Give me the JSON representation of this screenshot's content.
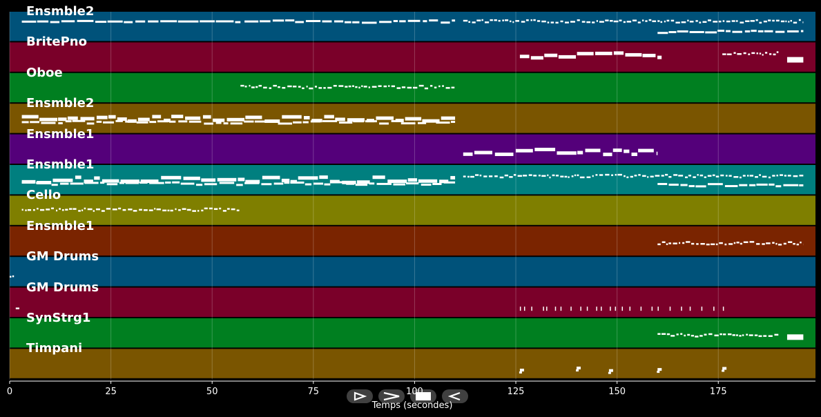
{
  "chart_data": {
    "type": "piano-roll",
    "xlabel": "Temps (secondes)",
    "xlim": [
      0,
      199
    ],
    "xticks": [
      0,
      25,
      50,
      75,
      100,
      125,
      150,
      175
    ],
    "grid": true,
    "tracks": [
      {
        "name": "Ensmble2",
        "color": "#00527a",
        "segments": [
          [
            3,
            57,
            0.3,
            "solid"
          ],
          [
            58,
            110,
            0.3,
            "dash"
          ],
          [
            112,
            160,
            0.3,
            "dots"
          ],
          [
            160,
            196,
            0.3,
            "dots"
          ],
          [
            160,
            196,
            0.65,
            "dash"
          ]
        ]
      },
      {
        "name": "BritePno",
        "color": "#7a0029",
        "segments": [
          [
            126,
            161,
            0.4,
            "thick"
          ],
          [
            176,
            190,
            0.35,
            "dots"
          ],
          [
            192,
            196,
            0.5,
            "block"
          ]
        ]
      },
      {
        "name": "Oboe",
        "color": "#007f20",
        "segments": [
          [
            57,
            110,
            0.45,
            "dots"
          ]
        ]
      },
      {
        "name": "Ensmble2",
        "color": "#7a5500",
        "segments": [
          [
            3,
            110,
            0.45,
            "thick"
          ],
          [
            3,
            110,
            0.6,
            "dash"
          ]
        ]
      },
      {
        "name": "Ensmble1",
        "color": "#54007a",
        "segments": [
          [
            112,
            160,
            0.55,
            "thick"
          ]
        ]
      },
      {
        "name": "Ensmble1",
        "color": "#007f7f",
        "segments": [
          [
            3,
            110,
            0.45,
            "thick"
          ],
          [
            3,
            110,
            0.6,
            "dash"
          ],
          [
            112,
            196,
            0.35,
            "dots"
          ],
          [
            160,
            196,
            0.65,
            "dash"
          ]
        ]
      },
      {
        "name": "Cello",
        "color": "#7f7f00",
        "segments": [
          [
            3,
            57,
            0.45,
            "dots"
          ]
        ]
      },
      {
        "name": "Ensmble1",
        "color": "#7a2400",
        "segments": [
          [
            160,
            196,
            0.55,
            "dots"
          ]
        ]
      },
      {
        "name": "GM Drums",
        "color": "#00527a",
        "segments": [
          [
            0,
            1.5,
            0.65,
            "dots"
          ]
        ]
      },
      {
        "name": "GM Drums",
        "color": "#7a0029",
        "segments": [
          [
            1.5,
            2.8,
            0.65,
            "dots"
          ],
          [
            126,
            177,
            0.65,
            "ticks"
          ]
        ]
      },
      {
        "name": "SynStrg1",
        "color": "#007f20",
        "segments": [
          [
            160,
            190,
            0.55,
            "dots"
          ],
          [
            192,
            196,
            0.55,
            "block"
          ]
        ]
      },
      {
        "name": "Timpani",
        "color": "#7a5500",
        "segments": [
          [
            126,
            128,
            0.65,
            "notes"
          ],
          [
            140,
            142,
            0.65,
            "notes"
          ],
          [
            148,
            150,
            0.7,
            "notes"
          ],
          [
            160,
            162,
            0.65,
            "notes"
          ],
          [
            176,
            178,
            0.65,
            "notes"
          ]
        ]
      }
    ]
  },
  "controls": [
    {
      "name": "play-icon"
    },
    {
      "name": "forward-icon"
    },
    {
      "name": "stop-icon"
    },
    {
      "name": "rewind-icon"
    }
  ]
}
